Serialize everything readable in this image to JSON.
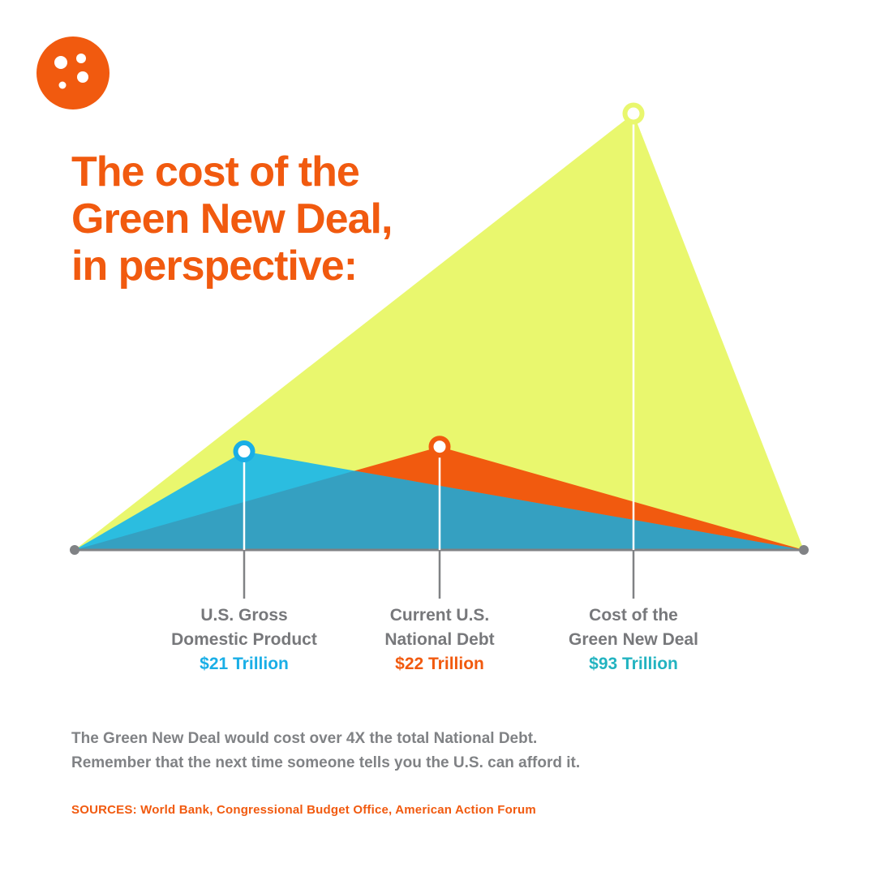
{
  "colors": {
    "accent": "#f15a0f",
    "gdp": "#2bbde0",
    "debt": "#f15a0f",
    "gnd": "#e9f76e",
    "overlap": "#35a0c1",
    "axis": "#808285",
    "gdp_value": "#19aee6",
    "gnd_value": "#22b3c0"
  },
  "logo": {
    "icon": "dots-logo-icon"
  },
  "title_lines": [
    "The cost of the",
    "Green New Deal,",
    "in perspective:"
  ],
  "chart_data": {
    "type": "area",
    "title": "The cost of the Green New Deal, in perspective:",
    "series": [
      {
        "key": "gdp",
        "label_lines": [
          "U.S. Gross",
          "Domestic Product"
        ],
        "value": 21,
        "value_label": "$21 Trillion"
      },
      {
        "key": "debt",
        "label_lines": [
          "Current U.S.",
          "National Debt"
        ],
        "value": 22,
        "value_label": "$22 Trillion"
      },
      {
        "key": "gnd",
        "label_lines": [
          "Cost of the",
          "Green New Deal"
        ],
        "value": 93,
        "value_label": "$93 Trillion"
      }
    ],
    "unit": "Trillion",
    "ylim": [
      0,
      93
    ],
    "grid": false
  },
  "note_lines": [
    "The Green New Deal would cost over 4X the total National Debt.",
    "Remember that the next time someone tells you the U.S. can afford it."
  ],
  "sources": "SOURCES: World Bank, Congressional Budget Office, American Action Forum"
}
